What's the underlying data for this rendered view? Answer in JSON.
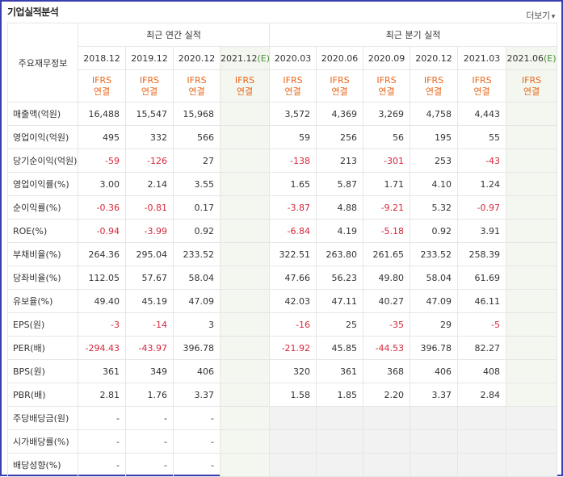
{
  "header": {
    "title": "기업실적분석",
    "more_label": "더보기",
    "more_icon": "chevron-down-icon"
  },
  "table": {
    "row_header_label": "주요재무정보",
    "annual_group_label": "최근 연간 실적",
    "quarter_group_label": "최근 분기 실적",
    "periods": [
      "2018.12",
      "2019.12",
      "2020.12",
      "2021.12",
      "2020.03",
      "2020.06",
      "2020.09",
      "2020.12",
      "2021.03",
      "2021.06"
    ],
    "estimate_marker": "(E)",
    "basis_line1": "IFRS",
    "basis_line2": "연결",
    "rows": [
      {
        "label": "매출액(억원)",
        "values": [
          "16,488",
          "15,547",
          "15,968",
          "",
          "3,572",
          "4,369",
          "3,269",
          "4,758",
          "4,443",
          ""
        ]
      },
      {
        "label": "영업이익(억원)",
        "values": [
          "495",
          "332",
          "566",
          "",
          "59",
          "256",
          "56",
          "195",
          "55",
          ""
        ]
      },
      {
        "label": "당기순이익(억원)",
        "values": [
          "-59",
          "-126",
          "27",
          "",
          "-138",
          "213",
          "-301",
          "253",
          "-43",
          ""
        ]
      },
      {
        "label": "영업이익률(%)",
        "values": [
          "3.00",
          "2.14",
          "3.55",
          "",
          "1.65",
          "5.87",
          "1.71",
          "4.10",
          "1.24",
          ""
        ]
      },
      {
        "label": "순이익률(%)",
        "values": [
          "-0.36",
          "-0.81",
          "0.17",
          "",
          "-3.87",
          "4.88",
          "-9.21",
          "5.32",
          "-0.97",
          ""
        ]
      },
      {
        "label": "ROE(%)",
        "values": [
          "-0.94",
          "-3.99",
          "0.92",
          "",
          "-6.84",
          "4.19",
          "-5.18",
          "0.92",
          "3.91",
          ""
        ]
      },
      {
        "label": "부채비율(%)",
        "values": [
          "264.36",
          "295.04",
          "233.52",
          "",
          "322.51",
          "263.80",
          "261.65",
          "233.52",
          "258.39",
          ""
        ]
      },
      {
        "label": "당좌비율(%)",
        "values": [
          "112.05",
          "57.67",
          "58.04",
          "",
          "47.66",
          "56.23",
          "49.80",
          "58.04",
          "61.69",
          ""
        ]
      },
      {
        "label": "유보율(%)",
        "values": [
          "49.40",
          "45.19",
          "47.09",
          "",
          "42.03",
          "47.11",
          "40.27",
          "47.09",
          "46.11",
          ""
        ]
      },
      {
        "label": "EPS(원)",
        "values": [
          "-3",
          "-14",
          "3",
          "",
          "-16",
          "25",
          "-35",
          "29",
          "-5",
          ""
        ]
      },
      {
        "label": "PER(배)",
        "values": [
          "-294.43",
          "-43.97",
          "396.78",
          "",
          "-21.92",
          "45.85",
          "-44.53",
          "396.78",
          "82.27",
          ""
        ]
      },
      {
        "label": "BPS(원)",
        "values": [
          "361",
          "349",
          "406",
          "",
          "320",
          "361",
          "368",
          "406",
          "408",
          ""
        ]
      },
      {
        "label": "PBR(배)",
        "values": [
          "2.81",
          "1.76",
          "3.37",
          "",
          "1.58",
          "1.85",
          "2.20",
          "3.37",
          "2.84",
          ""
        ]
      },
      {
        "label": "주당배당금(원)",
        "values": [
          "-",
          "-",
          "-",
          "",
          "",
          "",
          "",
          "",
          "",
          ""
        ]
      },
      {
        "label": "시가배당률(%)",
        "values": [
          "-",
          "-",
          "-",
          "",
          "",
          "",
          "",
          "",
          "",
          ""
        ]
      },
      {
        "label": "배당성향(%)",
        "values": [
          "-",
          "-",
          "-",
          "",
          "",
          "",
          "",
          "",
          "",
          ""
        ]
      }
    ]
  },
  "colors": {
    "frame_border": "#3a3fb0",
    "ifrs_text": "#e8661a",
    "negative_text": "#d6263a",
    "estimate_bg": "#f3f7ef",
    "empty_bg": "#f2f2f2"
  }
}
